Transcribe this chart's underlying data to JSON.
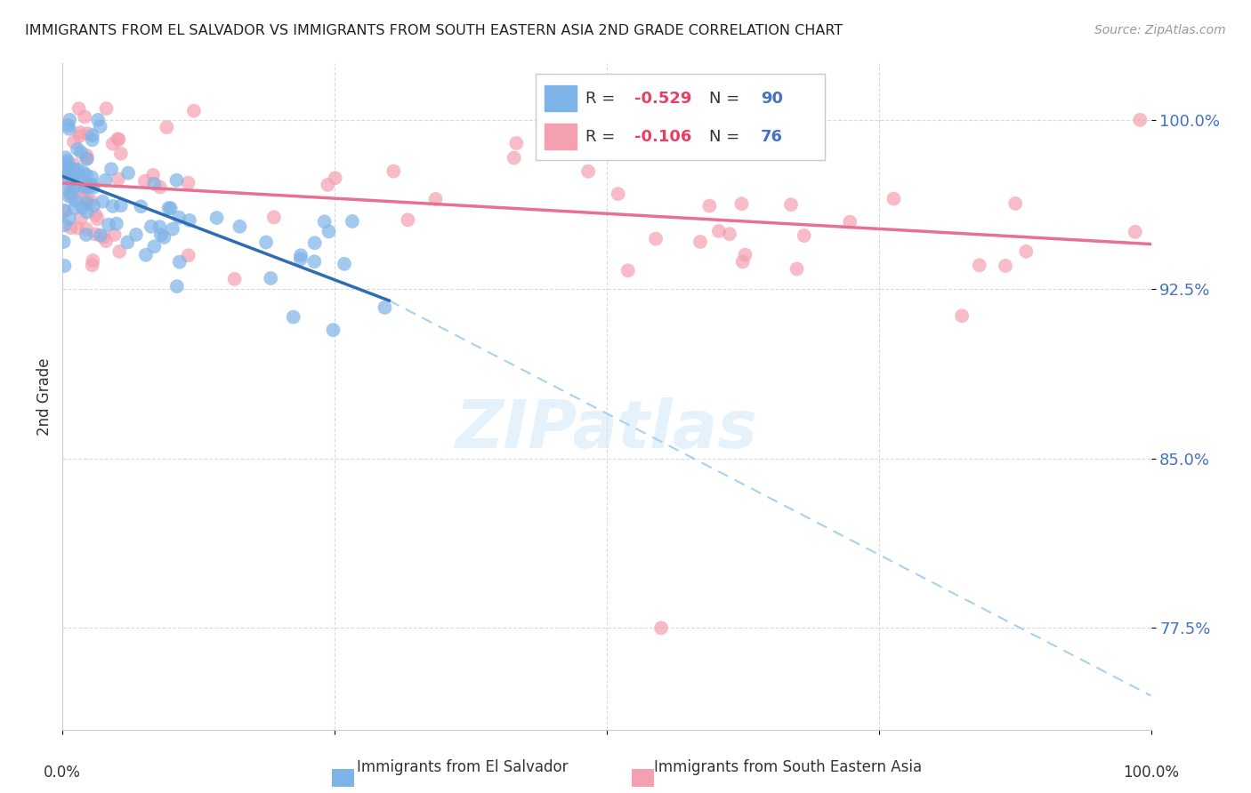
{
  "title": "IMMIGRANTS FROM EL SALVADOR VS IMMIGRANTS FROM SOUTH EASTERN ASIA 2ND GRADE CORRELATION CHART",
  "source": "Source: ZipAtlas.com",
  "ylabel": "2nd Grade",
  "y_ticks": [
    77.5,
    85.0,
    92.5,
    100.0
  ],
  "y_tick_labels": [
    "77.5%",
    "85.0%",
    "92.5%",
    "100.0%"
  ],
  "xmin": 0.0,
  "xmax": 100.0,
  "ymin": 73.0,
  "ymax": 102.5,
  "blue_R": "-0.529",
  "blue_N": "90",
  "pink_R": "-0.106",
  "pink_N": "76",
  "blue_color": "#7EB3E8",
  "pink_color": "#F4A0B0",
  "blue_line_color": "#2E6DB4",
  "pink_line_color": "#E87090",
  "blue_dashed_color": "#A8D0F0",
  "blue_line_x0": 0.0,
  "blue_line_y0": 97.5,
  "blue_line_x1": 30.0,
  "blue_line_y1": 92.0,
  "blue_dash_x0": 30.0,
  "blue_dash_y0": 92.0,
  "blue_dash_x1": 100.0,
  "blue_dash_y1": 74.5,
  "pink_line_x0": 0.0,
  "pink_line_y0": 97.2,
  "pink_line_x1": 100.0,
  "pink_line_y1": 94.5,
  "grid_color": "#CCCCCC",
  "background_color": "#FFFFFF",
  "label_blue": "Immigrants from El Salvador",
  "label_pink": "Immigrants from South Eastern Asia"
}
